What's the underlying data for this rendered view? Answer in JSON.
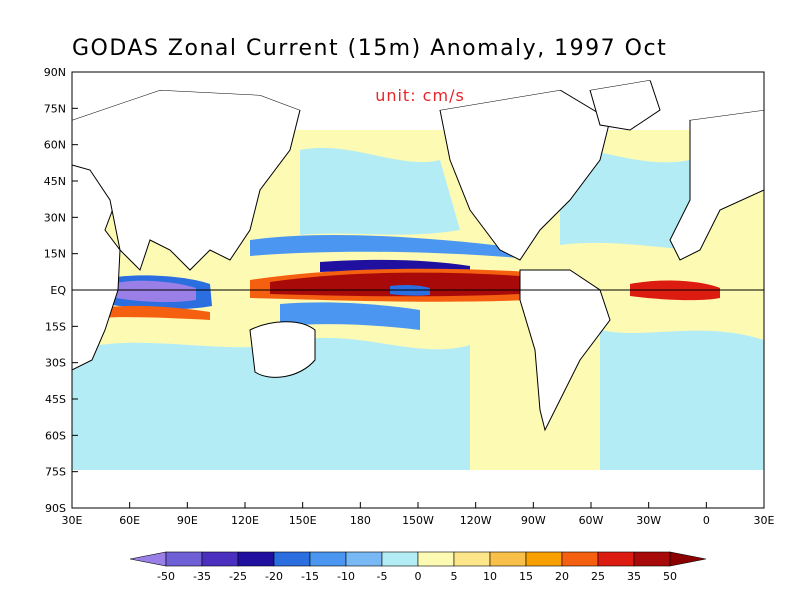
{
  "map": {
    "title": "GODAS Zonal Current (15m) Anomaly, 1997 Oct",
    "unit_label": "unit: cm/s",
    "unit_color": "#e8262a",
    "latitude_ticks": [
      "90N",
      "75N",
      "60N",
      "45N",
      "30N",
      "15N",
      "EQ",
      "15S",
      "30S",
      "45S",
      "60S",
      "75S",
      "90S"
    ],
    "longitude_ticks": [
      "30E",
      "60E",
      "90E",
      "120E",
      "150E",
      "180",
      "150W",
      "120W",
      "90W",
      "60W",
      "30W",
      "0",
      "30E"
    ],
    "equator_line": true
  },
  "colorbar": {
    "labels": [
      "-50",
      "-35",
      "-25",
      "-20",
      "-15",
      "-10",
      "-5",
      "0",
      "5",
      "10",
      "15",
      "20",
      "25",
      "35",
      "50"
    ],
    "colors": [
      "#9a80e6",
      "#7060d6",
      "#4b30c0",
      "#2010a0",
      "#2a6ee0",
      "#4a96f0",
      "#78b8f4",
      "#b4ecf6",
      "#fdfab4",
      "#fde68a",
      "#f8c048",
      "#f8a000",
      "#f56010",
      "#dc1c10",
      "#a80a0a",
      "#8a0000"
    ]
  }
}
